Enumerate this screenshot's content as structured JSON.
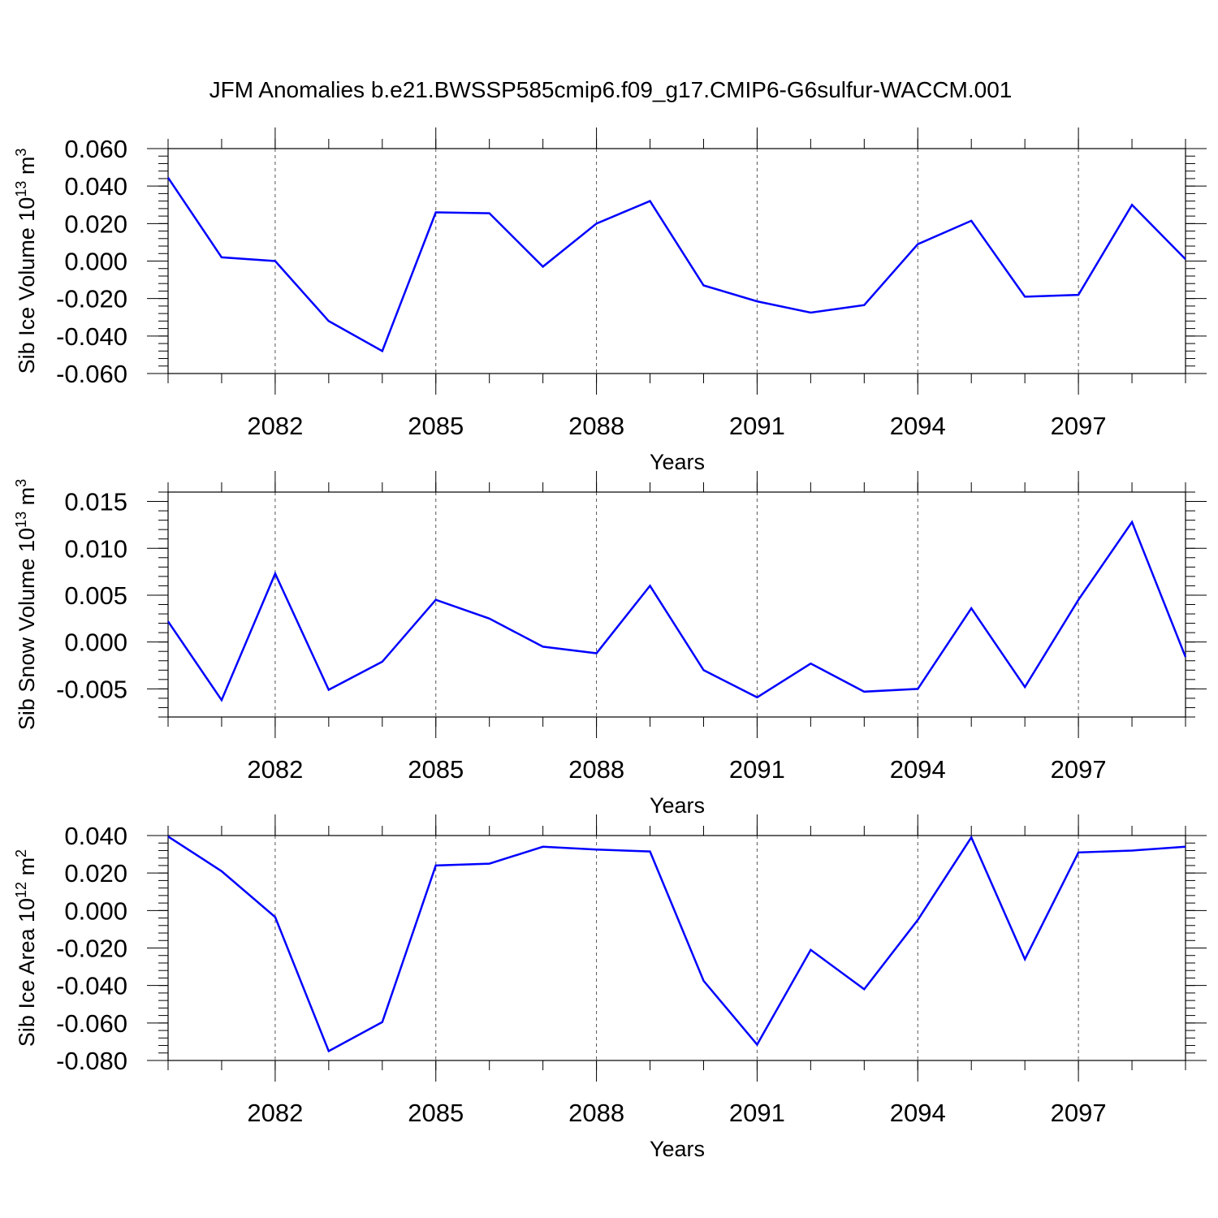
{
  "title": "JFM Anomalies b.e21.BWSSP585cmip6.f09_g17.CMIP6-G6sulfur-WACCM.001",
  "line_color": "#0000ff",
  "chart_data": [
    {
      "type": "line",
      "xlabel": "Years",
      "ylabel": {
        "text": "Sib Ice Volume 10",
        "sup1": "13",
        "mid": " m",
        "sup2": "3"
      },
      "xlim": [
        2080,
        2099
      ],
      "ylim": [
        -0.06,
        0.06
      ],
      "xticks": [
        2082,
        2085,
        2088,
        2091,
        2094,
        2097
      ],
      "xtick_labels": [
        "2082",
        "2085",
        "2088",
        "2091",
        "2094",
        "2097"
      ],
      "yticks": [
        -0.06,
        -0.04,
        -0.02,
        0.0,
        0.02,
        0.04,
        0.06
      ],
      "ytick_labels": [
        "-0.060",
        "-0.040",
        "-0.020",
        "0.000",
        "0.020",
        "0.040",
        "0.060"
      ],
      "grid": "vertical dashed at major x ticks",
      "x": [
        2080,
        2081,
        2082,
        2083,
        2084,
        2085,
        2086,
        2087,
        2088,
        2089,
        2090,
        2091,
        2092,
        2093,
        2094,
        2095,
        2096,
        2097,
        2098,
        2099
      ],
      "values": [
        0.0445,
        0.002,
        0.0,
        -0.032,
        -0.048,
        0.026,
        0.0255,
        -0.003,
        0.02,
        0.032,
        -0.013,
        -0.0215,
        -0.0275,
        -0.0235,
        0.009,
        0.0215,
        -0.019,
        -0.018,
        0.03,
        0.001
      ]
    },
    {
      "type": "line",
      "xlabel": "Years",
      "ylabel": {
        "text": "Sib Snow Volume 10",
        "sup1": "13",
        "mid": " m",
        "sup2": "3"
      },
      "xlim": [
        2080,
        2099
      ],
      "ylim": [
        -0.008,
        0.016
      ],
      "xticks": [
        2082,
        2085,
        2088,
        2091,
        2094,
        2097
      ],
      "xtick_labels": [
        "2082",
        "2085",
        "2088",
        "2091",
        "2094",
        "2097"
      ],
      "yticks": [
        -0.005,
        0.0,
        0.005,
        0.01,
        0.015
      ],
      "ytick_labels": [
        "-0.005",
        "0.000",
        "0.005",
        "0.010",
        "0.015"
      ],
      "grid": "vertical dashed at major x ticks",
      "x": [
        2080,
        2081,
        2082,
        2083,
        2084,
        2085,
        2086,
        2087,
        2088,
        2089,
        2090,
        2091,
        2092,
        2093,
        2094,
        2095,
        2096,
        2097,
        2098,
        2099
      ],
      "values": [
        0.0022,
        -0.0062,
        0.0073,
        -0.0051,
        -0.0021,
        0.0045,
        0.0025,
        -0.0005,
        -0.0012,
        0.006,
        -0.003,
        -0.0059,
        -0.0023,
        -0.0053,
        -0.005,
        0.0036,
        -0.0048,
        0.0045,
        0.0128,
        -0.0016
      ]
    },
    {
      "type": "line",
      "xlabel": "Years",
      "ylabel": {
        "text": "Sib Ice Area 10",
        "sup1": "12",
        "mid": " m",
        "sup2": "2"
      },
      "xlim": [
        2080,
        2099
      ],
      "ylim": [
        -0.08,
        0.04
      ],
      "xticks": [
        2082,
        2085,
        2088,
        2091,
        2094,
        2097
      ],
      "xtick_labels": [
        "2082",
        "2085",
        "2088",
        "2091",
        "2094",
        "2097"
      ],
      "yticks": [
        -0.08,
        -0.06,
        -0.04,
        -0.02,
        0.0,
        0.02,
        0.04
      ],
      "ytick_labels": [
        "-0.080",
        "-0.060",
        "-0.040",
        "-0.020",
        "0.000",
        "0.020",
        "0.040"
      ],
      "grid": "vertical dashed at major x ticks",
      "x": [
        2080,
        2081,
        2082,
        2083,
        2084,
        2085,
        2086,
        2087,
        2088,
        2089,
        2090,
        2091,
        2092,
        2093,
        2094,
        2095,
        2096,
        2097,
        2098,
        2099
      ],
      "values": [
        0.0395,
        0.021,
        -0.0035,
        -0.075,
        -0.0595,
        0.024,
        0.025,
        0.034,
        0.0325,
        0.0315,
        -0.0375,
        -0.0715,
        -0.021,
        -0.042,
        -0.005,
        0.039,
        -0.026,
        0.031,
        0.032,
        0.034
      ]
    }
  ]
}
